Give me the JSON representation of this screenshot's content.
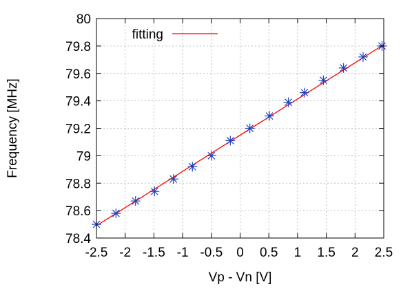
{
  "chart_data": {
    "type": "scatter",
    "title": "",
    "xlabel": "Vp - Vn [V]",
    "ylabel": "Frequency [MHz]",
    "xlim": [
      -2.5,
      2.5
    ],
    "ylim": [
      78.4,
      80.0
    ],
    "xticks": [
      -2.5,
      -2,
      -1.5,
      -1,
      -0.5,
      0,
      0.5,
      1,
      1.5,
      2,
      2.5
    ],
    "xtick_labels": [
      "-2.5",
      "-2",
      "-1.5",
      "-1",
      "-0.5",
      "0",
      "0.5",
      "1",
      "1.5",
      "2",
      "2.5"
    ],
    "yticks": [
      78.4,
      78.6,
      78.8,
      79.0,
      79.2,
      79.4,
      79.6,
      79.8,
      80.0
    ],
    "ytick_labels": [
      "78.4",
      "78.6",
      "78.8",
      "79",
      "79.2",
      "79.4",
      "79.6",
      "79.8",
      "80"
    ],
    "grid": true,
    "legend_position": "top-left",
    "series": [
      {
        "kind": "points",
        "marker": "asterisk",
        "color": "#1f3fbf",
        "x": [
          -2.5,
          -2.16,
          -1.82,
          -1.49,
          -1.16,
          -0.83,
          -0.5,
          -0.17,
          0.17,
          0.51,
          0.84,
          1.12,
          1.45,
          1.8,
          2.14,
          2.47
        ],
        "y": [
          78.5,
          78.58,
          78.67,
          78.74,
          78.83,
          78.92,
          79.0,
          79.11,
          79.2,
          79.29,
          79.39,
          79.46,
          79.55,
          79.64,
          79.72,
          79.8
        ]
      },
      {
        "name": "fitting",
        "kind": "line",
        "color": "#ff0000",
        "x": [
          -2.5,
          2.5
        ],
        "y": [
          78.49,
          79.81
        ]
      }
    ]
  }
}
